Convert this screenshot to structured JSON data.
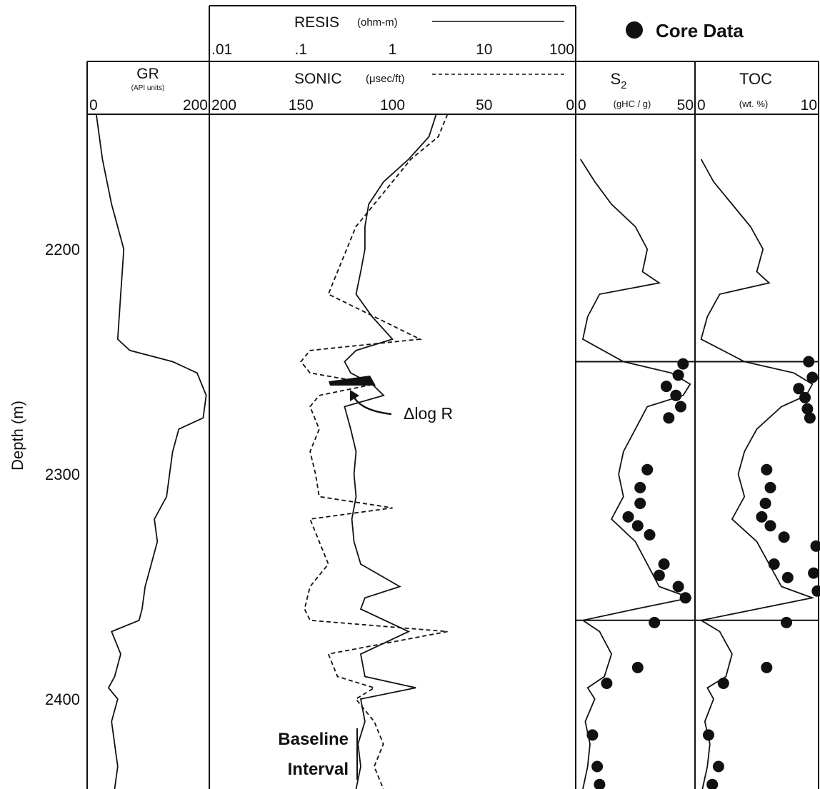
{
  "chart_data": {
    "type": "line",
    "y_axis": {
      "label": "Depth (m)",
      "ticks": [
        2200,
        2300,
        2400
      ],
      "range": [
        2140,
        2440
      ],
      "reversed": true
    },
    "legend": {
      "marker_label": "Core Data",
      "placement": "top-right"
    },
    "tracks": [
      {
        "name": "GR",
        "unit": "(API units)",
        "scale": "linear",
        "range": [
          0,
          200
        ],
        "tick_labels": [
          "0",
          "200"
        ],
        "series": [
          {
            "name": "GR",
            "style": "solid",
            "points": [
              [
                2140,
                15
              ],
              [
                2160,
                25
              ],
              [
                2180,
                40
              ],
              [
                2200,
                60
              ],
              [
                2220,
                55
              ],
              [
                2240,
                50
              ],
              [
                2245,
                70
              ],
              [
                2250,
                140
              ],
              [
                2255,
                180
              ],
              [
                2265,
                195
              ],
              [
                2275,
                190
              ],
              [
                2280,
                150
              ],
              [
                2290,
                140
              ],
              [
                2300,
                135
              ],
              [
                2310,
                130
              ],
              [
                2320,
                110
              ],
              [
                2330,
                115
              ],
              [
                2340,
                105
              ],
              [
                2350,
                95
              ],
              [
                2360,
                90
              ],
              [
                2365,
                85
              ],
              [
                2370,
                40
              ],
              [
                2380,
                55
              ],
              [
                2390,
                45
              ],
              [
                2395,
                35
              ],
              [
                2400,
                50
              ],
              [
                2410,
                40
              ],
              [
                2420,
                45
              ],
              [
                2430,
                50
              ],
              [
                2440,
                45
              ]
            ]
          }
        ]
      },
      {
        "name": "RESIS / SONIC",
        "series": [
          {
            "name": "RESIS",
            "unit": "(ohm-m)",
            "style": "solid",
            "scale": "log",
            "range": [
              0.01,
              100
            ],
            "tick_labels": [
              ".01",
              ".1",
              "1",
              "10",
              "100"
            ],
            "points": [
              [
                2140,
                3
              ],
              [
                2150,
                2.5
              ],
              [
                2160,
                1.5
              ],
              [
                2170,
                0.8
              ],
              [
                2180,
                0.55
              ],
              [
                2190,
                0.5
              ],
              [
                2200,
                0.5
              ],
              [
                2210,
                0.45
              ],
              [
                2220,
                0.4
              ],
              [
                2230,
                0.6
              ],
              [
                2240,
                1
              ],
              [
                2245,
                0.4
              ],
              [
                2250,
                0.3
              ],
              [
                2255,
                0.35
              ],
              [
                2260,
                0.6
              ],
              [
                2265,
                0.8
              ],
              [
                2270,
                0.3
              ],
              [
                2280,
                0.35
              ],
              [
                2290,
                0.4
              ],
              [
                2300,
                0.38
              ],
              [
                2310,
                0.4
              ],
              [
                2320,
                0.36
              ],
              [
                2330,
                0.38
              ],
              [
                2340,
                0.45
              ],
              [
                2350,
                1.2
              ],
              [
                2355,
                0.5
              ],
              [
                2360,
                0.45
              ],
              [
                2370,
                1.5
              ],
              [
                2380,
                0.45
              ],
              [
                2390,
                0.5
              ],
              [
                2395,
                1.8
              ],
              [
                2400,
                0.45
              ],
              [
                2410,
                0.5
              ],
              [
                2420,
                0.42
              ],
              [
                2430,
                0.45
              ],
              [
                2440,
                0.4
              ]
            ]
          },
          {
            "name": "SONIC",
            "unit": "(μsec/ft)",
            "style": "dashed",
            "scale": "linear",
            "range": [
              200,
              0
            ],
            "tick_labels": [
              "200",
              "150",
              "100",
              "50",
              "0"
            ],
            "points": [
              [
                2140,
                70
              ],
              [
                2150,
                75
              ],
              [
                2160,
                90
              ],
              [
                2170,
                100
              ],
              [
                2180,
                110
              ],
              [
                2190,
                120
              ],
              [
                2200,
                125
              ],
              [
                2210,
                130
              ],
              [
                2220,
                135
              ],
              [
                2230,
                110
              ],
              [
                2240,
                85
              ],
              [
                2245,
                145
              ],
              [
                2250,
                150
              ],
              [
                2255,
                145
              ],
              [
                2260,
                110
              ],
              [
                2265,
                140
              ],
              [
                2270,
                145
              ],
              [
                2280,
                140
              ],
              [
                2290,
                145
              ],
              [
                2300,
                142
              ],
              [
                2310,
                140
              ],
              [
                2315,
                100
              ],
              [
                2320,
                145
              ],
              [
                2330,
                140
              ],
              [
                2340,
                135
              ],
              [
                2350,
                145
              ],
              [
                2360,
                148
              ],
              [
                2365,
                145
              ],
              [
                2370,
                70
              ],
              [
                2380,
                135
              ],
              [
                2390,
                130
              ],
              [
                2395,
                110
              ],
              [
                2400,
                120
              ],
              [
                2410,
                110
              ],
              [
                2420,
                105
              ],
              [
                2430,
                110
              ],
              [
                2440,
                105
              ]
            ]
          }
        ],
        "annotations": [
          {
            "text": "Δlog R",
            "depth": 2268
          },
          {
            "text": "Baseline",
            "depth": 2418
          },
          {
            "text": "Interval",
            "depth": 2432
          }
        ]
      },
      {
        "name": "S",
        "subscript": "2",
        "unit": "(gHC / g)",
        "scale": "linear",
        "range": [
          0,
          50
        ],
        "tick_labels": [
          "0",
          "50"
        ],
        "series": [
          {
            "name": "S2",
            "style": "solid",
            "points": [
              [
                2160,
                2
              ],
              [
                2170,
                8
              ],
              [
                2180,
                15
              ],
              [
                2190,
                25
              ],
              [
                2200,
                30
              ],
              [
                2210,
                28
              ],
              [
                2215,
                35
              ],
              [
                2220,
                10
              ],
              [
                2230,
                5
              ],
              [
                2240,
                3
              ],
              [
                2250,
                20
              ],
              [
                2255,
                40
              ],
              [
                2260,
                48
              ],
              [
                2265,
                45
              ],
              [
                2270,
                30
              ],
              [
                2280,
                25
              ],
              [
                2290,
                20
              ],
              [
                2300,
                18
              ],
              [
                2310,
                20
              ],
              [
                2320,
                15
              ],
              [
                2330,
                25
              ],
              [
                2340,
                30
              ],
              [
                2350,
                35
              ],
              [
                2355,
                48
              ],
              [
                2360,
                25
              ],
              [
                2365,
                3
              ],
              [
                2370,
                10
              ],
              [
                2380,
                15
              ],
              [
                2390,
                12
              ],
              [
                2395,
                5
              ],
              [
                2400,
                8
              ],
              [
                2410,
                4
              ],
              [
                2420,
                6
              ],
              [
                2430,
                5
              ],
              [
                2440,
                3
              ]
            ]
          },
          {
            "name": "Core Data",
            "style": "marker",
            "points": [
              [
                2251,
                45
              ],
              [
                2256,
                43
              ],
              [
                2261,
                38
              ],
              [
                2265,
                42
              ],
              [
                2270,
                44
              ],
              [
                2275,
                39
              ],
              [
                2298,
                30
              ],
              [
                2306,
                27
              ],
              [
                2313,
                27
              ],
              [
                2319,
                22
              ],
              [
                2323,
                26
              ],
              [
                2327,
                31
              ],
              [
                2340,
                37
              ],
              [
                2345,
                35
              ],
              [
                2350,
                43
              ],
              [
                2355,
                46
              ],
              [
                2366,
                33
              ],
              [
                2386,
                26
              ],
              [
                2393,
                13
              ],
              [
                2416,
                7
              ],
              [
                2430,
                9
              ],
              [
                2438,
                10
              ]
            ]
          }
        ]
      },
      {
        "name": "TOC",
        "unit": "(wt. %)",
        "scale": "linear",
        "range": [
          0,
          10
        ],
        "tick_labels": [
          "0",
          "10"
        ],
        "series": [
          {
            "name": "TOC",
            "style": "solid",
            "points": [
              [
                2160,
                0.5
              ],
              [
                2170,
                1.5
              ],
              [
                2180,
                3
              ],
              [
                2190,
                4.5
              ],
              [
                2200,
                5.5
              ],
              [
                2210,
                5
              ],
              [
                2215,
                6
              ],
              [
                2220,
                2
              ],
              [
                2230,
                1
              ],
              [
                2240,
                0.5
              ],
              [
                2250,
                4
              ],
              [
                2255,
                8
              ],
              [
                2260,
                9.5
              ],
              [
                2265,
                9
              ],
              [
                2270,
                7
              ],
              [
                2280,
                5
              ],
              [
                2290,
                4
              ],
              [
                2300,
                3.5
              ],
              [
                2310,
                4
              ],
              [
                2320,
                3
              ],
              [
                2330,
                5
              ],
              [
                2340,
                6
              ],
              [
                2350,
                7
              ],
              [
                2355,
                9.5
              ],
              [
                2360,
                5
              ],
              [
                2365,
                0.5
              ],
              [
                2370,
                2
              ],
              [
                2380,
                3
              ],
              [
                2390,
                2.5
              ],
              [
                2395,
                1
              ],
              [
                2400,
                1.5
              ],
              [
                2410,
                0.8
              ],
              [
                2420,
                1.2
              ],
              [
                2430,
                1
              ],
              [
                2440,
                0.6
              ]
            ]
          },
          {
            "name": "Core Data",
            "style": "marker",
            "points": [
              [
                2250,
                9.2
              ],
              [
                2257,
                9.5
              ],
              [
                2262,
                8.4
              ],
              [
                2266,
                8.9
              ],
              [
                2271,
                9.1
              ],
              [
                2275,
                9.3
              ],
              [
                2298,
                5.8
              ],
              [
                2306,
                6.1
              ],
              [
                2313,
                5.7
              ],
              [
                2319,
                5.4
              ],
              [
                2323,
                6.1
              ],
              [
                2328,
                7.2
              ],
              [
                2332,
                9.8
              ],
              [
                2340,
                6.4
              ],
              [
                2344,
                9.6
              ],
              [
                2346,
                7.5
              ],
              [
                2352,
                9.9
              ],
              [
                2366,
                7.4
              ],
              [
                2386,
                5.8
              ],
              [
                2393,
                2.3
              ],
              [
                2416,
                1.1
              ],
              [
                2430,
                1.9
              ],
              [
                2438,
                1.4
              ]
            ]
          }
        ]
      }
    ]
  }
}
